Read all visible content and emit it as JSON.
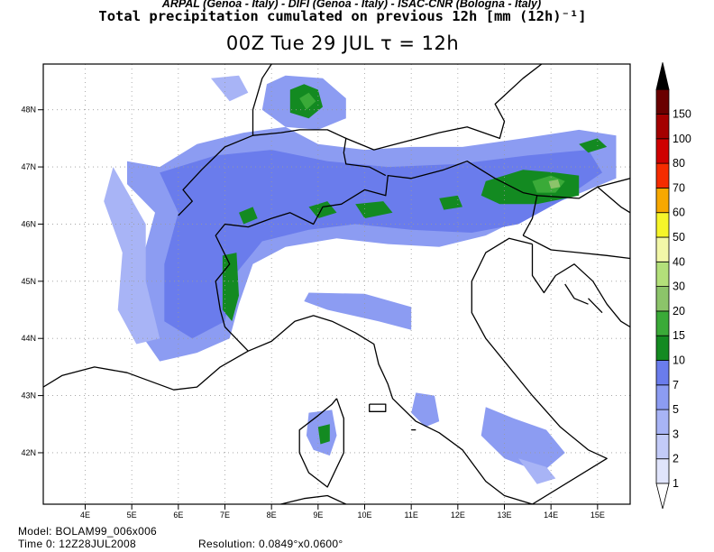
{
  "header": {
    "institutions": "ARPAL (Genoa - Italy)  -  DIFI (Genoa - Italy)  -  ISAC-CNR (Bologna - Italy)",
    "title": "Total precipitation cumulated on previous 12h [mm (12h)⁻¹]",
    "valid_time": "00Z Tue 29 JUL   τ = 12h"
  },
  "map": {
    "lon_range": [
      3.1,
      15.7
    ],
    "lat_range": [
      41.1,
      48.8
    ],
    "lon_ticks": [
      {
        "lon": 4,
        "label": "4E"
      },
      {
        "lon": 5,
        "label": "5E"
      },
      {
        "lon": 6,
        "label": "6E"
      },
      {
        "lon": 7,
        "label": "7E"
      },
      {
        "lon": 8,
        "label": "8E"
      },
      {
        "lon": 9,
        "label": "9E"
      },
      {
        "lon": 10,
        "label": "10E"
      },
      {
        "lon": 11,
        "label": "11E"
      },
      {
        "lon": 12,
        "label": "12E"
      },
      {
        "lon": 13,
        "label": "13E"
      },
      {
        "lon": 14,
        "label": "14E"
      },
      {
        "lon": 15,
        "label": "15E"
      }
    ],
    "lat_ticks": [
      {
        "lat": 48,
        "label": "48N"
      },
      {
        "lat": 47,
        "label": "47N"
      },
      {
        "lat": 46,
        "label": "46N"
      },
      {
        "lat": 45,
        "label": "45N"
      },
      {
        "lat": 44,
        "label": "44N"
      },
      {
        "lat": 43,
        "label": "43N"
      },
      {
        "lat": 42,
        "label": "42N"
      }
    ],
    "colorbar": [
      {
        "label": "1",
        "color": "#e0e4fb"
      },
      {
        "label": "2",
        "color": "#c3cbf8"
      },
      {
        "label": "3",
        "color": "#a8b4f6"
      },
      {
        "label": "5",
        "color": "#8c9cf2"
      },
      {
        "label": "7",
        "color": "#6a7cec"
      },
      {
        "label": "10",
        "color": "#138a21"
      },
      {
        "label": "15",
        "color": "#3aaa38"
      },
      {
        "label": "20",
        "color": "#8cc46a"
      },
      {
        "label": "30",
        "color": "#b3e07a"
      },
      {
        "label": "40",
        "color": "#f2f7a8"
      },
      {
        "label": "50",
        "color": "#f6f52a"
      },
      {
        "label": "60",
        "color": "#f7a800"
      },
      {
        "label": "70",
        "color": "#f52c00"
      },
      {
        "label": "80",
        "color": "#cf0000"
      },
      {
        "label": "100",
        "color": "#a40000"
      },
      {
        "label": "150",
        "color": "#6a0000"
      }
    ],
    "colorbar_top_color": "#000000",
    "coast_color": "#000000",
    "gridline_color": "#9a9a9a"
  },
  "footer": {
    "model": "Model: BOLAM99_006x006",
    "time0": "Time 0: 12Z28JUL2008",
    "resolution": "Resolution: 0.0849°x0.0600°"
  }
}
